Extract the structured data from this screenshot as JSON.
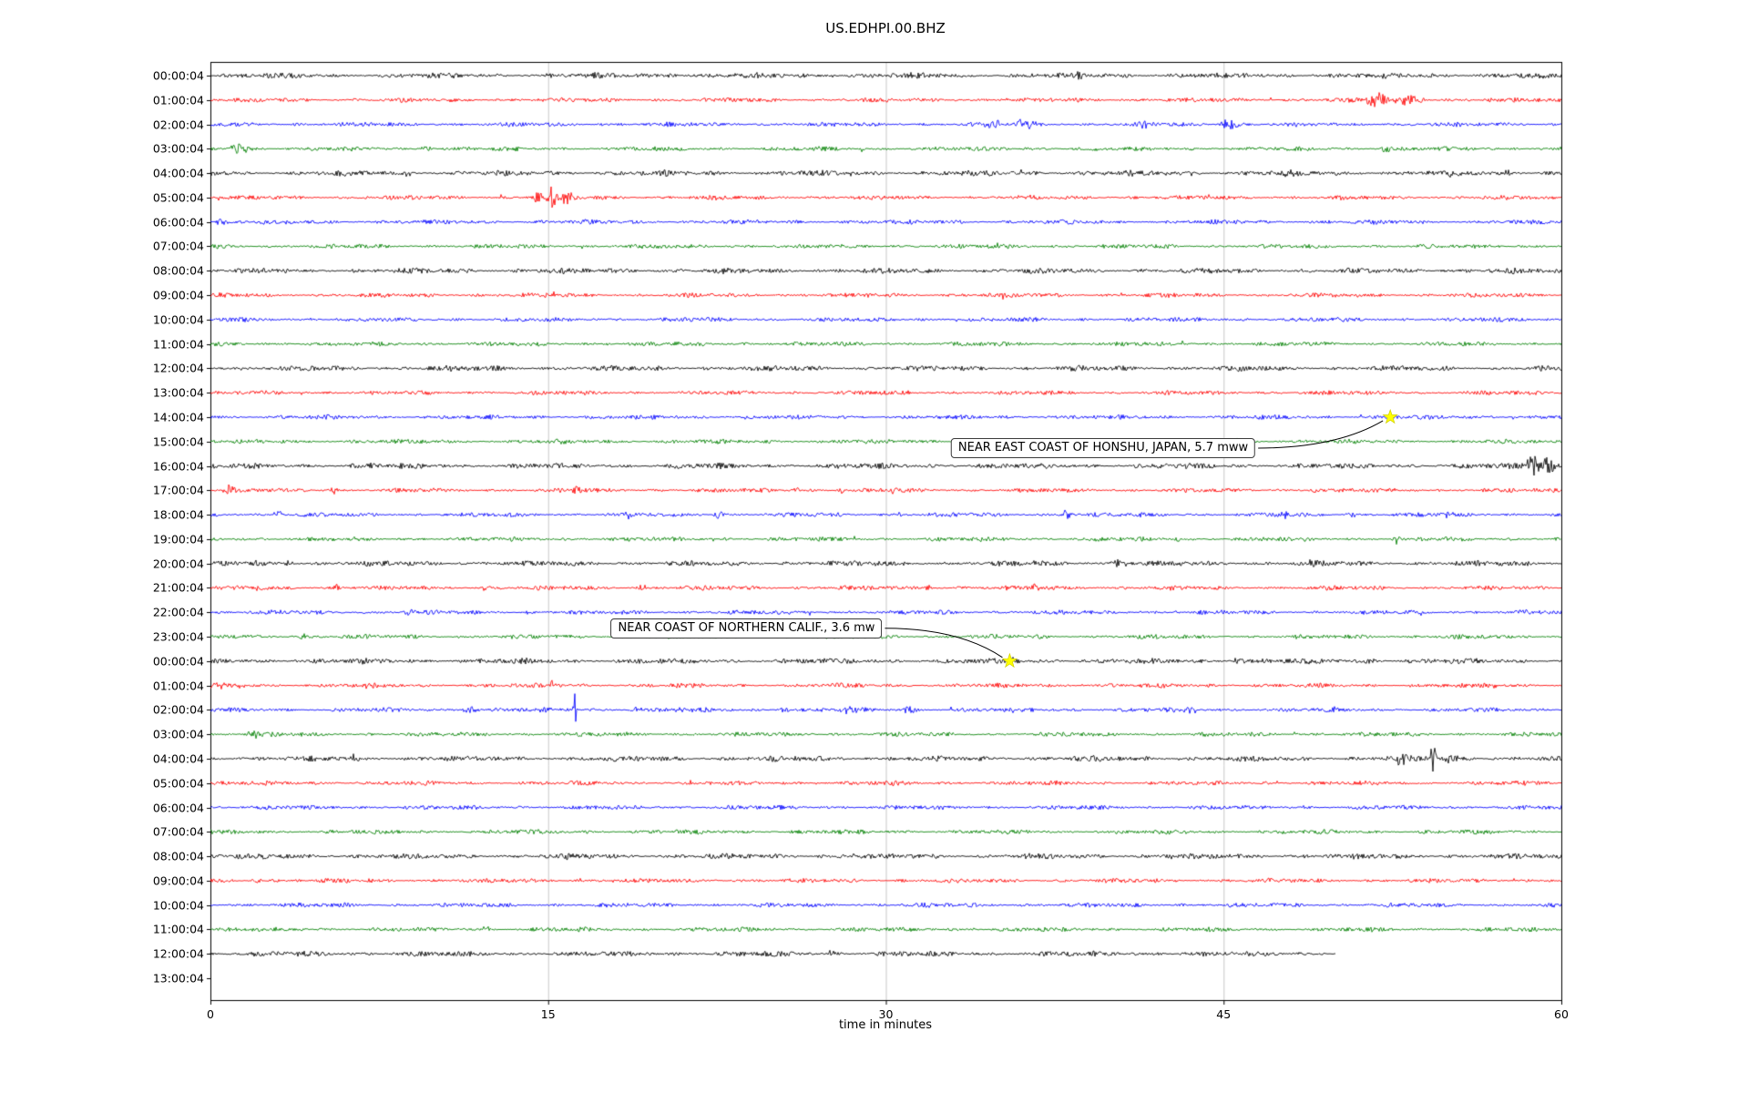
{
  "title": "US.EDHPI.00.BHZ",
  "chart_data": {
    "type": "line",
    "subtype": "helicorder-dayplot",
    "station_id": "US.EDHPI.00.BHZ",
    "xlabel": "time in minutes",
    "xlim": [
      0,
      60
    ],
    "x_ticks": [
      "0",
      "15",
      "30",
      "45",
      "60"
    ],
    "x_tick_values": [
      0,
      15,
      30,
      45,
      60
    ],
    "grid_minutes": [
      15,
      30,
      45
    ],
    "grid_color": "#c8c8c8",
    "trace_colors_cycle": [
      "#000000",
      "#ff0000",
      "#0000ff",
      "#008000"
    ],
    "rows": [
      {
        "label": "00:00:04",
        "color": "#000000"
      },
      {
        "label": "01:00:04",
        "color": "#ff0000"
      },
      {
        "label": "02:00:04",
        "color": "#0000ff"
      },
      {
        "label": "03:00:04",
        "color": "#008000"
      },
      {
        "label": "04:00:04",
        "color": "#000000"
      },
      {
        "label": "05:00:04",
        "color": "#ff0000"
      },
      {
        "label": "06:00:04",
        "color": "#0000ff"
      },
      {
        "label": "07:00:04",
        "color": "#008000"
      },
      {
        "label": "08:00:04",
        "color": "#000000"
      },
      {
        "label": "09:00:04",
        "color": "#ff0000"
      },
      {
        "label": "10:00:04",
        "color": "#0000ff"
      },
      {
        "label": "11:00:04",
        "color": "#008000"
      },
      {
        "label": "12:00:04",
        "color": "#000000"
      },
      {
        "label": "13:00:04",
        "color": "#ff0000"
      },
      {
        "label": "14:00:04",
        "color": "#0000ff"
      },
      {
        "label": "15:00:04",
        "color": "#008000"
      },
      {
        "label": "16:00:04",
        "color": "#000000"
      },
      {
        "label": "17:00:04",
        "color": "#ff0000"
      },
      {
        "label": "18:00:04",
        "color": "#0000ff"
      },
      {
        "label": "19:00:04",
        "color": "#008000"
      },
      {
        "label": "20:00:04",
        "color": "#000000"
      },
      {
        "label": "21:00:04",
        "color": "#ff0000"
      },
      {
        "label": "22:00:04",
        "color": "#0000ff"
      },
      {
        "label": "23:00:04",
        "color": "#008000"
      },
      {
        "label": "00:00:04",
        "color": "#000000"
      },
      {
        "label": "01:00:04",
        "color": "#ff0000"
      },
      {
        "label": "02:00:04",
        "color": "#0000ff"
      },
      {
        "label": "03:00:04",
        "color": "#008000"
      },
      {
        "label": "04:00:04",
        "color": "#000000"
      },
      {
        "label": "05:00:04",
        "color": "#ff0000"
      },
      {
        "label": "06:00:04",
        "color": "#0000ff"
      },
      {
        "label": "07:00:04",
        "color": "#008000"
      },
      {
        "label": "08:00:04",
        "color": "#000000"
      },
      {
        "label": "09:00:04",
        "color": "#ff0000"
      },
      {
        "label": "10:00:04",
        "color": "#0000ff"
      },
      {
        "label": "11:00:04",
        "color": "#008000"
      },
      {
        "label": "12:00:04",
        "color": "#000000",
        "end_minute": 50
      },
      {
        "label": "13:00:04",
        "color": "#ff0000",
        "no_data": true
      }
    ],
    "events": [
      {
        "label": "NEAR EAST COAST OF HONSHU, JAPAN, 5.7 mww",
        "row_index": 14,
        "minute": 52.4,
        "marker": "star",
        "marker_color": "#ffff00",
        "label_offset": [
          -148,
          34
        ]
      },
      {
        "label": "NEAR COAST OF NORTHERN CALIF., 3.6 mw",
        "row_index": 24,
        "minute": 35.5,
        "marker": "star",
        "marker_color": "#ffff00",
        "label_offset": [
          -140,
          -36
        ]
      }
    ],
    "bursts": [
      [
        0,
        20.5,
        2.5,
        0.2
      ],
      [
        0,
        24.8,
        3,
        0.15
      ],
      [
        0,
        31.2,
        2.5,
        0.15
      ],
      [
        0,
        38.5,
        2,
        0.2
      ],
      [
        1,
        51.8,
        7,
        0.5
      ],
      [
        1,
        53.3,
        6,
        0.6
      ],
      [
        2,
        34.8,
        6,
        0.3
      ],
      [
        2,
        36.2,
        5,
        0.5
      ],
      [
        2,
        41.5,
        3,
        0.3
      ],
      [
        2,
        45.3,
        6,
        0.4
      ],
      [
        3,
        1.3,
        6,
        0.5
      ],
      [
        3,
        9.6,
        3,
        0.3
      ],
      [
        3,
        52.2,
        4,
        0.25
      ],
      [
        4,
        8.7,
        3,
        0.2
      ],
      [
        4,
        47.8,
        3.5,
        0.15
      ],
      [
        4,
        57.6,
        3.5,
        0.25
      ],
      [
        5,
        14.6,
        8,
        0.3
      ],
      [
        5,
        15.2,
        14,
        0.25
      ],
      [
        5,
        15.8,
        6,
        0.3
      ],
      [
        6,
        0.5,
        3,
        0.3
      ],
      [
        13,
        30.8,
        3,
        0.15
      ],
      [
        16,
        58.7,
        14,
        0.3
      ],
      [
        16,
        59.4,
        10,
        0.3
      ],
      [
        17,
        0.8,
        6,
        0.2
      ],
      [
        17,
        5.5,
        5,
        0.15
      ],
      [
        17,
        16.3,
        7,
        0.2
      ],
      [
        17,
        26,
        4,
        0.15
      ],
      [
        17,
        28,
        4,
        0.15
      ],
      [
        17,
        30.4,
        5,
        0.15
      ],
      [
        17,
        49,
        3,
        0.2
      ],
      [
        18,
        3,
        4,
        0.2
      ],
      [
        18,
        18.5,
        6,
        0.2
      ],
      [
        18,
        22.6,
        5,
        0.2
      ],
      [
        18,
        30.5,
        3,
        0.2
      ],
      [
        18,
        38,
        5,
        0.25
      ],
      [
        18,
        47.7,
        4,
        0.2
      ],
      [
        18,
        50.8,
        4,
        0.2
      ],
      [
        18,
        55,
        3,
        0.2
      ],
      [
        19,
        43,
        3,
        0.2
      ],
      [
        19,
        52.7,
        5,
        0.15
      ],
      [
        20,
        3.5,
        4,
        0.2
      ],
      [
        20,
        25.5,
        4,
        0.15
      ],
      [
        20,
        36.5,
        3,
        0.2
      ],
      [
        20,
        40.3,
        4.5,
        0.25
      ],
      [
        20,
        48.9,
        8,
        0.12
      ],
      [
        20,
        49.4,
        6,
        0.12
      ],
      [
        21,
        2.2,
        4,
        0.2
      ],
      [
        21,
        5.6,
        4,
        0.2
      ],
      [
        21,
        12.2,
        3.5,
        0.2
      ],
      [
        21,
        19.2,
        3.5,
        0.2
      ],
      [
        21,
        28,
        3,
        0.2
      ],
      [
        21,
        31.9,
        4,
        0.15
      ],
      [
        21,
        36.6,
        3.5,
        0.2
      ],
      [
        22,
        8.8,
        4,
        0.2
      ],
      [
        22,
        14.2,
        3,
        0.2
      ],
      [
        23,
        4.2,
        4,
        0.25
      ],
      [
        24,
        35.6,
        3,
        0.3
      ],
      [
        24,
        45.6,
        4,
        0.3
      ],
      [
        24,
        51.5,
        3,
        0.3
      ],
      [
        25,
        0.5,
        3,
        0.2
      ],
      [
        25,
        15.2,
        7,
        0.1
      ],
      [
        25,
        57,
        3.5,
        0.2
      ],
      [
        26,
        11.5,
        4,
        0.3
      ],
      [
        26,
        16.2,
        24,
        0.07
      ],
      [
        26,
        19,
        3.5,
        0.3
      ],
      [
        26,
        21,
        4,
        0.3
      ],
      [
        26,
        25.5,
        4,
        0.3
      ],
      [
        26,
        28.5,
        4,
        0.4
      ],
      [
        26,
        31,
        4,
        0.3
      ],
      [
        26,
        43.5,
        4,
        0.3
      ],
      [
        27,
        2,
        4,
        0.4
      ],
      [
        28,
        52.8,
        7,
        0.4
      ],
      [
        28,
        54.3,
        16,
        0.15
      ],
      [
        28,
        55.1,
        5,
        0.3
      ],
      [
        33,
        2,
        3,
        0.3
      ]
    ]
  }
}
